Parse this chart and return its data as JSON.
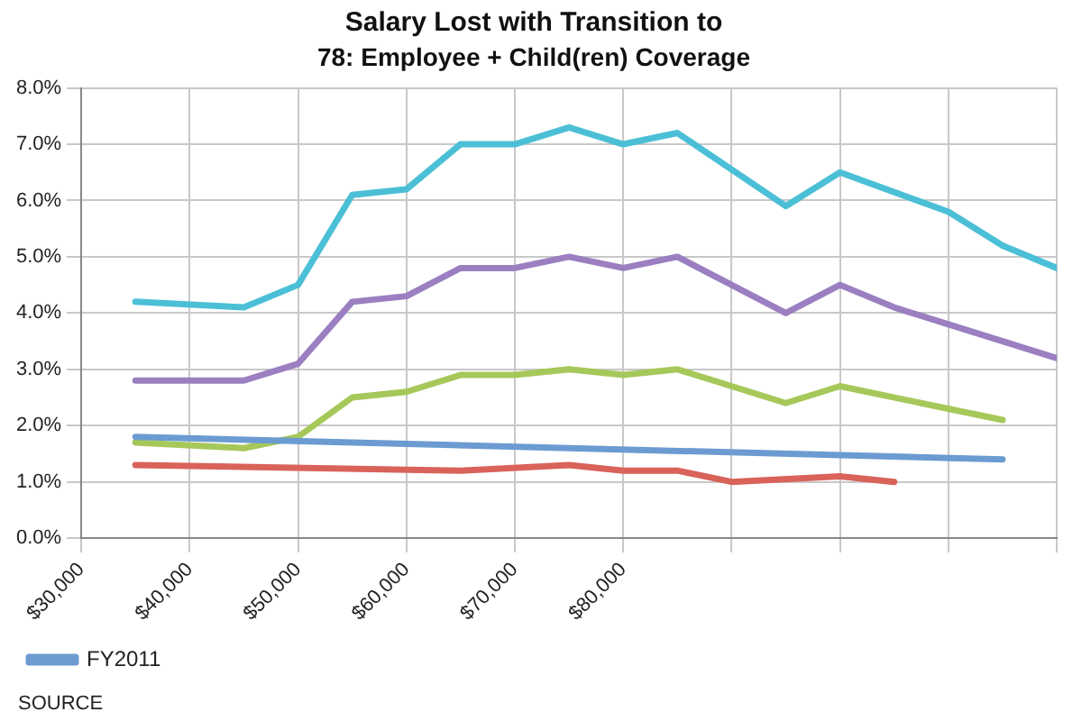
{
  "chart_data": {
    "type": "line",
    "title": "Salary Lost with Transition to",
    "subtitle": "78: Employee + Child(ren) Coverage",
    "xlim": [
      30000,
      120000
    ],
    "xticks": [
      {
        "value": 30000,
        "label": "$30,000"
      },
      {
        "value": 40000,
        "label": "$40,000"
      },
      {
        "value": 50000,
        "label": "$50,000"
      },
      {
        "value": 60000,
        "label": "$60,000"
      },
      {
        "value": 70000,
        "label": "$70,000"
      },
      {
        "value": 80000,
        "label": "$80,000"
      },
      {
        "value": 90000,
        "label": null
      },
      {
        "value": 100000,
        "label": null
      },
      {
        "value": 110000,
        "label": null
      },
      {
        "value": 120000,
        "label": null
      }
    ],
    "ylim": [
      0,
      8
    ],
    "yticks": [
      {
        "value": 0,
        "label": "0.0%"
      },
      {
        "value": 1,
        "label": "1.0%"
      },
      {
        "value": 2,
        "label": "2.0%"
      },
      {
        "value": 3,
        "label": "3.0%"
      },
      {
        "value": 4,
        "label": "4.0%"
      },
      {
        "value": 5,
        "label": "5.0%"
      },
      {
        "value": 6,
        "label": "6.0%"
      },
      {
        "value": 7,
        "label": "7.0%"
      },
      {
        "value": 8,
        "label": "8.0%"
      }
    ],
    "grid": true,
    "legend": "bottom left",
    "marker": "none",
    "line_style": "solid",
    "annotations": [
      "SOURCE"
    ],
    "series": [
      {
        "name": "FY2011",
        "color": "#6b9bd1",
        "x": [
          35000,
          115000
        ],
        "values": [
          1.8,
          1.4
        ]
      },
      {
        "color": "#d9625a",
        "x": [
          35000,
          65000,
          75000,
          80000,
          85000,
          90000,
          100000,
          105000
        ],
        "values": [
          1.3,
          1.2,
          1.3,
          1.2,
          1.2,
          1.0,
          1.1,
          1.0
        ]
      },
      {
        "color": "#a6c85a",
        "x": [
          35000,
          45000,
          50000,
          55000,
          60000,
          65000,
          70000,
          75000,
          80000,
          85000,
          95000,
          100000,
          115000
        ],
        "values": [
          1.7,
          1.6,
          1.8,
          2.5,
          2.6,
          2.9,
          2.9,
          3.0,
          2.9,
          3.0,
          2.4,
          2.7,
          2.1
        ]
      },
      {
        "color": "#9b7fc1",
        "x": [
          35000,
          45000,
          50000,
          55000,
          60000,
          65000,
          70000,
          75000,
          80000,
          85000,
          90000,
          95000,
          100000,
          105000,
          110000,
          115000,
          120000
        ],
        "values": [
          2.8,
          2.8,
          3.1,
          4.2,
          4.3,
          4.8,
          4.8,
          5.0,
          4.8,
          5.0,
          4.5,
          4.0,
          4.5,
          4.1,
          3.8,
          3.5,
          3.2
        ]
      },
      {
        "color": "#4bbfd6",
        "x": [
          35000,
          45000,
          50000,
          55000,
          60000,
          65000,
          70000,
          75000,
          80000,
          85000,
          95000,
          100000,
          110000,
          115000,
          120000
        ],
        "values": [
          4.2,
          4.1,
          4.5,
          6.1,
          6.2,
          7.0,
          7.0,
          7.3,
          7.0,
          7.2,
          5.9,
          6.5,
          5.8,
          5.2,
          4.8
        ]
      }
    ]
  }
}
